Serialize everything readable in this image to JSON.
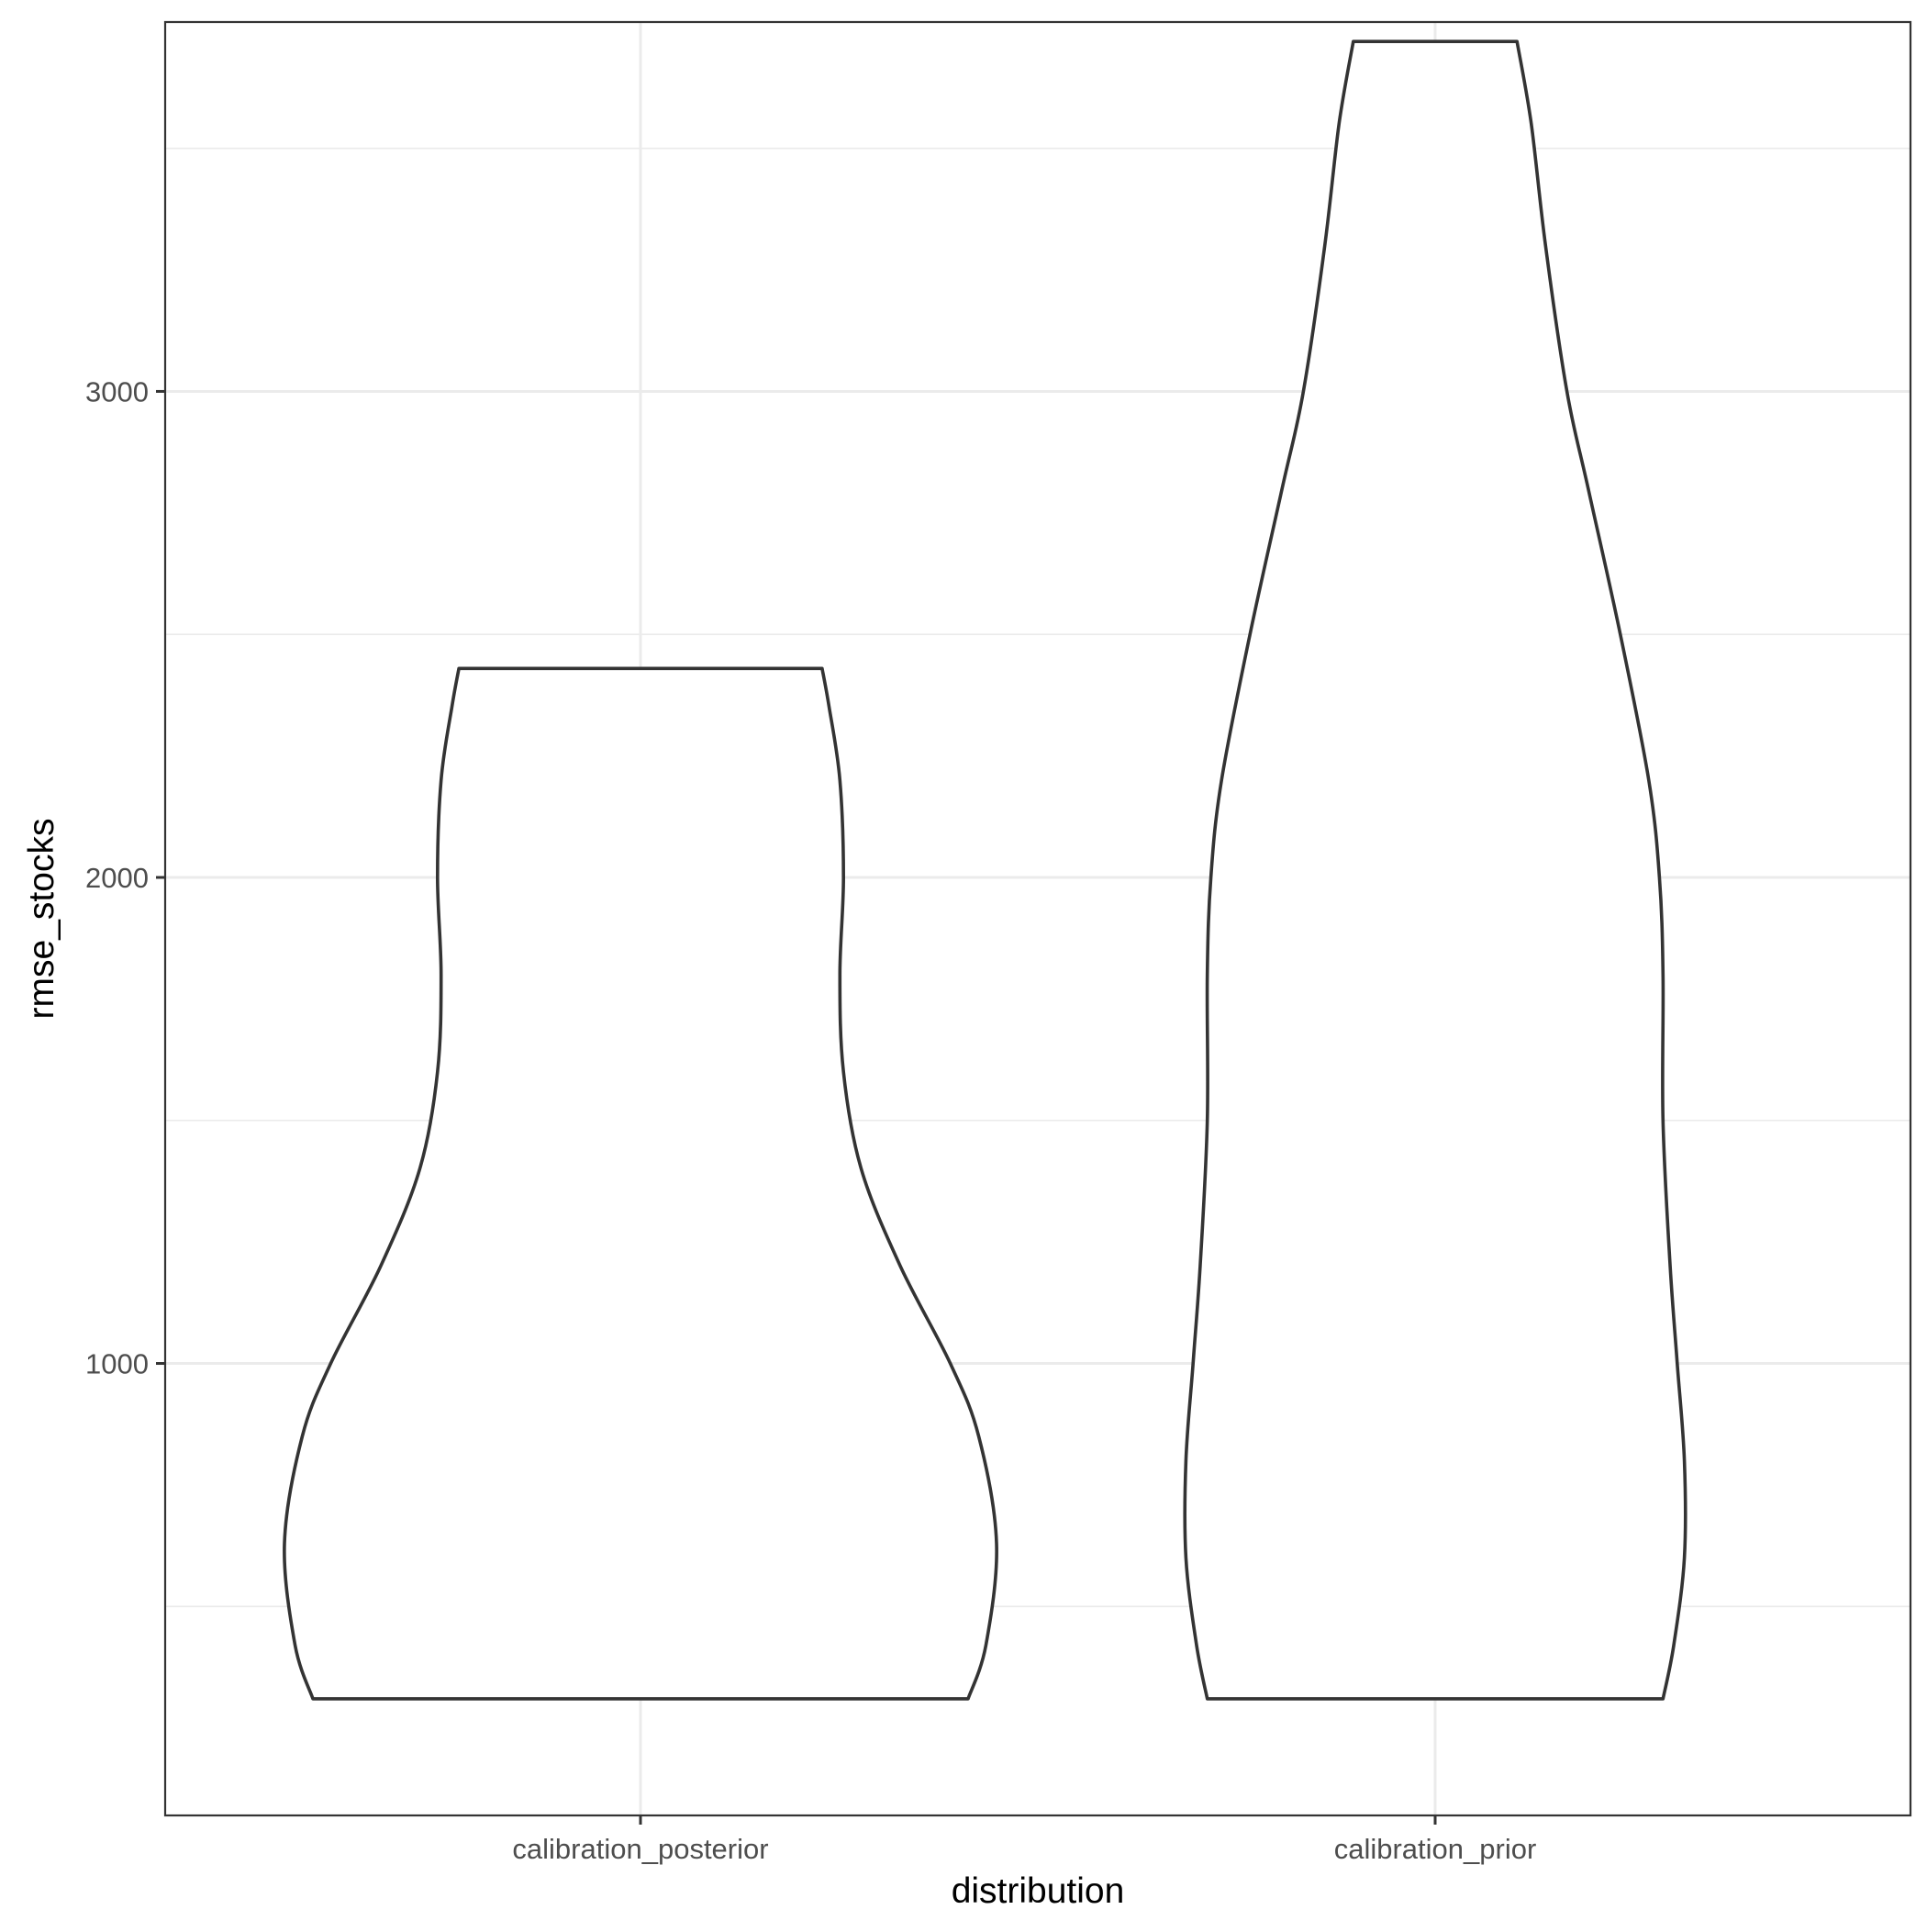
{
  "chart_data": {
    "type": "violin",
    "xlabel": "distribution",
    "ylabel": "rmse_stocks",
    "categories": [
      "calibration_posterior",
      "calibration_prior"
    ],
    "y_ticks": [
      1000,
      2000,
      3000
    ],
    "ylim": [
      70,
      3760
    ],
    "grid": true,
    "legend": "none",
    "violins": [
      {
        "category": "calibration_posterior",
        "min": 310,
        "max": 2430,
        "density_profile": [
          {
            "y": 310,
            "halfwidth": 0.92
          },
          {
            "y": 420,
            "halfwidth": 0.97
          },
          {
            "y": 630,
            "halfwidth": 1.0
          },
          {
            "y": 850,
            "halfwidth": 0.95
          },
          {
            "y": 1000,
            "halfwidth": 0.87
          },
          {
            "y": 1200,
            "halfwidth": 0.73
          },
          {
            "y": 1400,
            "halfwidth": 0.62
          },
          {
            "y": 1600,
            "halfwidth": 0.57
          },
          {
            "y": 1800,
            "halfwidth": 0.56
          },
          {
            "y": 2000,
            "halfwidth": 0.57
          },
          {
            "y": 2200,
            "halfwidth": 0.56
          },
          {
            "y": 2350,
            "halfwidth": 0.53
          },
          {
            "y": 2430,
            "halfwidth": 0.51
          }
        ]
      },
      {
        "category": "calibration_prior",
        "min": 310,
        "max": 3720,
        "density_profile": [
          {
            "y": 310,
            "halfwidth": 0.64
          },
          {
            "y": 420,
            "halfwidth": 0.67
          },
          {
            "y": 600,
            "halfwidth": 0.7
          },
          {
            "y": 800,
            "halfwidth": 0.7
          },
          {
            "y": 1000,
            "halfwidth": 0.68
          },
          {
            "y": 1200,
            "halfwidth": 0.66
          },
          {
            "y": 1500,
            "halfwidth": 0.64
          },
          {
            "y": 1800,
            "halfwidth": 0.64
          },
          {
            "y": 2000,
            "halfwidth": 0.63
          },
          {
            "y": 2200,
            "halfwidth": 0.6
          },
          {
            "y": 2500,
            "halfwidth": 0.52
          },
          {
            "y": 2800,
            "halfwidth": 0.43
          },
          {
            "y": 3000,
            "halfwidth": 0.37
          },
          {
            "y": 3300,
            "halfwidth": 0.31
          },
          {
            "y": 3550,
            "halfwidth": 0.27
          },
          {
            "y": 3720,
            "halfwidth": 0.23
          }
        ]
      }
    ]
  }
}
